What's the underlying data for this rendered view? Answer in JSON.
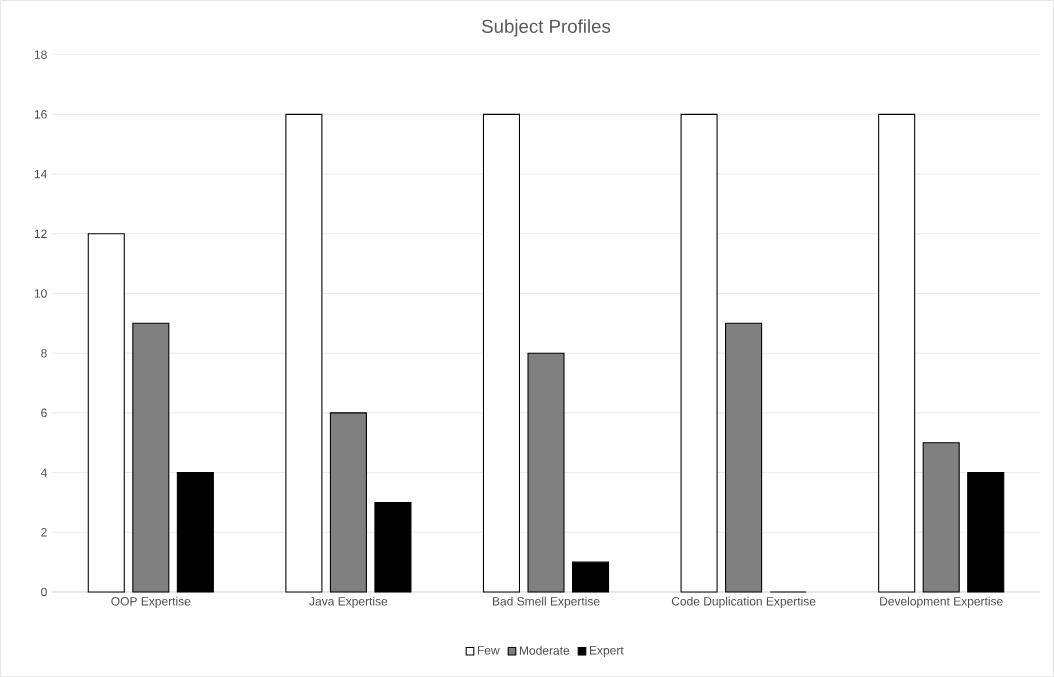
{
  "chart_data": {
    "type": "bar",
    "title": "Subject Profiles",
    "categories": [
      "OOP Expertise",
      "Java Expertise",
      "Bad Smell Expertise",
      "Code Duplication Expertise",
      "Development Expertise"
    ],
    "series": [
      {
        "name": "Few",
        "color": "#ffffff",
        "values": [
          12,
          16,
          16,
          16,
          16
        ]
      },
      {
        "name": "Moderate",
        "color": "#808080",
        "values": [
          9,
          6,
          8,
          9,
          5
        ]
      },
      {
        "name": "Expert",
        "color": "#000000",
        "values": [
          4,
          3,
          1,
          0,
          4
        ]
      }
    ],
    "ylim": [
      0,
      18
    ],
    "yticks": [
      0,
      2,
      4,
      6,
      8,
      10,
      12,
      14,
      16,
      18
    ],
    "grid": "y",
    "legend": "bottom"
  }
}
